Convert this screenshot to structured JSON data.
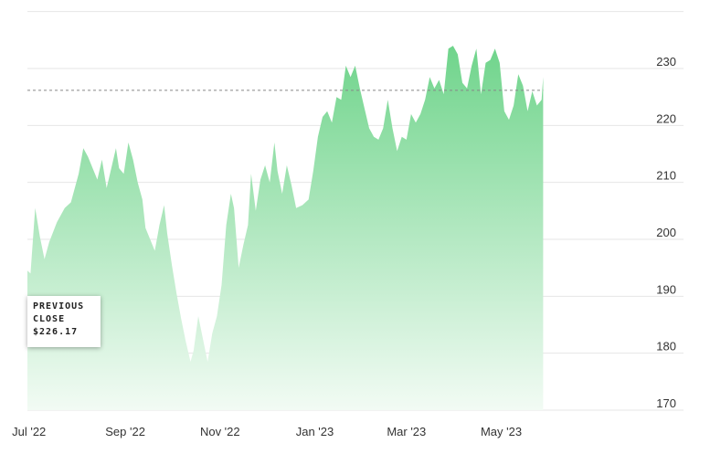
{
  "chart_data": {
    "type": "area",
    "title": "",
    "xlabel": "",
    "ylabel": "",
    "ylim": [
      170,
      235
    ],
    "y_ticks": [
      170,
      180,
      190,
      200,
      210,
      220,
      230
    ],
    "x_ticks": [
      "Jul '22",
      "Sep '22",
      "Nov '22",
      "Jan '23",
      "Mar '23",
      "May '23"
    ],
    "x_start": "2022-06-30",
    "grid": true,
    "colors": {
      "fill_top": "#6fd48b",
      "fill_bottom": "#f2fbf4",
      "grid": "#e6e6e6",
      "reference_line": "#888888"
    },
    "previous_close": {
      "label_line1": "PREVIOUS",
      "label_line2": "CLOSE",
      "value_text": "$226.17",
      "value": 226.17
    },
    "series": [
      {
        "values": [
          [
            "2022-06-30",
            194.5
          ],
          [
            "2022-07-02",
            194.0
          ],
          [
            "2022-07-05",
            205.5
          ],
          [
            "2022-07-08",
            200.5
          ],
          [
            "2022-07-11",
            196.5
          ],
          [
            "2022-07-14",
            199.5
          ],
          [
            "2022-07-19",
            203.0
          ],
          [
            "2022-07-24",
            205.5
          ],
          [
            "2022-07-28",
            206.5
          ],
          [
            "2022-08-02",
            211.5
          ],
          [
            "2022-08-05",
            216.0
          ],
          [
            "2022-08-08",
            214.5
          ],
          [
            "2022-08-11",
            212.5
          ],
          [
            "2022-08-14",
            210.5
          ],
          [
            "2022-08-17",
            214.0
          ],
          [
            "2022-08-20",
            209.0
          ],
          [
            "2022-08-23",
            212.5
          ],
          [
            "2022-08-26",
            216.0
          ],
          [
            "2022-08-28",
            212.5
          ],
          [
            "2022-08-31",
            211.5
          ],
          [
            "2022-09-03",
            217.0
          ],
          [
            "2022-09-06",
            214.0
          ],
          [
            "2022-09-09",
            210.0
          ],
          [
            "2022-09-12",
            207.0
          ],
          [
            "2022-09-14",
            202.0
          ],
          [
            "2022-09-17",
            200.0
          ],
          [
            "2022-09-20",
            198.0
          ],
          [
            "2022-09-23",
            202.5
          ],
          [
            "2022-09-26",
            206.0
          ],
          [
            "2022-09-28",
            201.0
          ],
          [
            "2022-10-01",
            195.5
          ],
          [
            "2022-10-04",
            190.5
          ],
          [
            "2022-10-07",
            186.0
          ],
          [
            "2022-10-10",
            182.0
          ],
          [
            "2022-10-13",
            178.5
          ],
          [
            "2022-10-15",
            180.5
          ],
          [
            "2022-10-18",
            186.5
          ],
          [
            "2022-10-21",
            182.5
          ],
          [
            "2022-10-24",
            178.5
          ],
          [
            "2022-10-27",
            183.5
          ],
          [
            "2022-10-30",
            186.5
          ],
          [
            "2022-11-02",
            192.0
          ],
          [
            "2022-11-05",
            202.5
          ],
          [
            "2022-11-08",
            208.0
          ],
          [
            "2022-11-10",
            205.5
          ],
          [
            "2022-11-13",
            195.0
          ],
          [
            "2022-11-16",
            199.0
          ],
          [
            "2022-11-19",
            202.5
          ],
          [
            "2022-11-21",
            211.5
          ],
          [
            "2022-11-24",
            205.0
          ],
          [
            "2022-11-27",
            210.5
          ],
          [
            "2022-11-30",
            213.0
          ],
          [
            "2022-12-03",
            210.0
          ],
          [
            "2022-12-06",
            217.0
          ],
          [
            "2022-12-08",
            212.0
          ],
          [
            "2022-12-11",
            208.0
          ],
          [
            "2022-12-14",
            213.0
          ],
          [
            "2022-12-17",
            209.5
          ],
          [
            "2022-12-20",
            205.5
          ],
          [
            "2022-12-24",
            206.0
          ],
          [
            "2022-12-28",
            207.0
          ],
          [
            "2022-12-31",
            212.0
          ],
          [
            "2023-01-03",
            218.0
          ],
          [
            "2023-01-06",
            221.5
          ],
          [
            "2023-01-09",
            222.5
          ],
          [
            "2023-01-12",
            220.5
          ],
          [
            "2023-01-15",
            225.0
          ],
          [
            "2023-01-18",
            224.5
          ],
          [
            "2023-01-21",
            230.5
          ],
          [
            "2023-01-24",
            228.5
          ],
          [
            "2023-01-27",
            230.5
          ],
          [
            "2023-01-30",
            226.5
          ],
          [
            "2023-02-02",
            223.0
          ],
          [
            "2023-02-05",
            219.5
          ],
          [
            "2023-02-08",
            218.0
          ],
          [
            "2023-02-11",
            217.5
          ],
          [
            "2023-02-14",
            219.5
          ],
          [
            "2023-02-17",
            224.5
          ],
          [
            "2023-02-20",
            219.5
          ],
          [
            "2023-02-23",
            215.5
          ],
          [
            "2023-02-26",
            218.0
          ],
          [
            "2023-03-01",
            217.5
          ],
          [
            "2023-03-04",
            222.0
          ],
          [
            "2023-03-07",
            220.5
          ],
          [
            "2023-03-10",
            222.0
          ],
          [
            "2023-03-13",
            224.5
          ],
          [
            "2023-03-16",
            228.5
          ],
          [
            "2023-03-19",
            226.5
          ],
          [
            "2023-03-22",
            228.0
          ],
          [
            "2023-03-25",
            225.5
          ],
          [
            "2023-03-28",
            233.5
          ],
          [
            "2023-03-31",
            234.0
          ],
          [
            "2023-04-03",
            232.5
          ],
          [
            "2023-04-06",
            227.5
          ],
          [
            "2023-04-09",
            226.5
          ],
          [
            "2023-04-12",
            230.5
          ],
          [
            "2023-04-15",
            233.5
          ],
          [
            "2023-04-18",
            225.5
          ],
          [
            "2023-04-21",
            231.0
          ],
          [
            "2023-04-24",
            231.5
          ],
          [
            "2023-04-27",
            233.5
          ],
          [
            "2023-04-30",
            231.0
          ],
          [
            "2023-05-03",
            222.5
          ],
          [
            "2023-05-06",
            221.0
          ],
          [
            "2023-05-09",
            223.5
          ],
          [
            "2023-05-12",
            229.0
          ],
          [
            "2023-05-15",
            227.0
          ],
          [
            "2023-05-18",
            222.5
          ],
          [
            "2023-05-21",
            226.0
          ],
          [
            "2023-05-24",
            223.5
          ],
          [
            "2023-05-27",
            224.5
          ],
          [
            "2023-05-28",
            228.5
          ]
        ]
      }
    ]
  }
}
